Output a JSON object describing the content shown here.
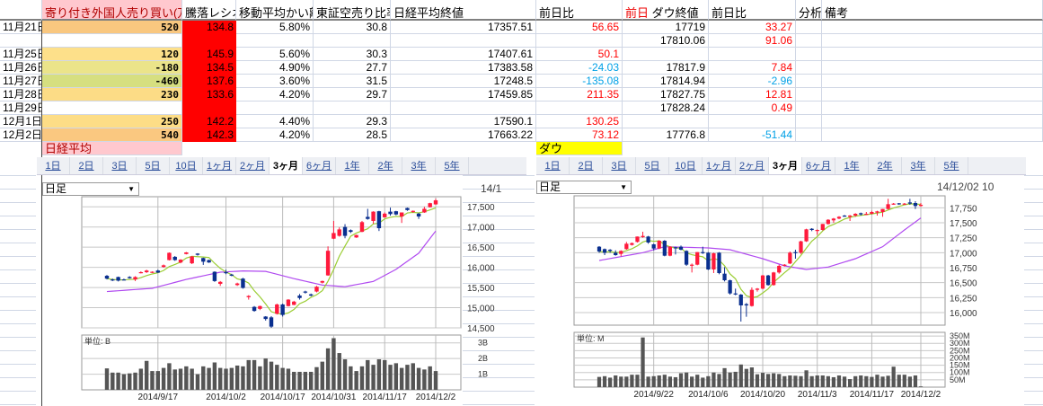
{
  "headers": {
    "A": "寄り付き外国人売り買い(万株)",
    "B": "騰落レシオ",
    "C": "移動平均かい離",
    "D": "東証空売り比率",
    "E": "日経平均終値",
    "F": "前日比",
    "G_prefix": "前日",
    "G": "ダウ終値",
    "H": "前日比",
    "I": "分析",
    "J": "備考"
  },
  "rows": [
    {
      "date": "11月21日",
      "foreign": "520",
      "ratio": "134.8",
      "ma_dev": "5.80%",
      "short_ratio": "30.8",
      "nikkei": "17357.51",
      "nikkei_chg": "56.65",
      "dow": "17719",
      "dow_chg": "33.27"
    },
    {
      "date": "",
      "foreign": "",
      "ratio": "",
      "ma_dev": "",
      "short_ratio": "",
      "nikkei": "",
      "nikkei_chg": "",
      "dow": "17810.06",
      "dow_chg": "91.06"
    },
    {
      "date": "11月25日",
      "foreign": "120",
      "ratio": "145.9",
      "ma_dev": "5.60%",
      "short_ratio": "30.3",
      "nikkei": "17407.61",
      "nikkei_chg": "50.1",
      "dow": "",
      "dow_chg": ""
    },
    {
      "date": "11月26日",
      "foreign": "-180",
      "ratio": "134.5",
      "ma_dev": "4.90%",
      "short_ratio": "27.7",
      "nikkei": "17383.58",
      "nikkei_chg": "-24.03",
      "dow": "17817.9",
      "dow_chg": "7.84"
    },
    {
      "date": "11月27日",
      "foreign": "-460",
      "ratio": "137.6",
      "ma_dev": "3.60%",
      "short_ratio": "31.5",
      "nikkei": "17248.5",
      "nikkei_chg": "-135.08",
      "dow": "17814.94",
      "dow_chg": "-2.96"
    },
    {
      "date": "11月28日",
      "foreign": "230",
      "ratio": "133.6",
      "ma_dev": "4.20%",
      "short_ratio": "29.7",
      "nikkei": "17459.85",
      "nikkei_chg": "211.35",
      "dow": "17827.75",
      "dow_chg": "12.81"
    },
    {
      "date": "11月29日",
      "foreign": "",
      "ratio": "",
      "ma_dev": "",
      "short_ratio": "",
      "nikkei": "",
      "nikkei_chg": "",
      "dow": "17828.24",
      "dow_chg": "0.49"
    },
    {
      "date": "12月1日",
      "foreign": "250",
      "ratio": "142.2",
      "ma_dev": "4.40%",
      "short_ratio": "29.3",
      "nikkei": "17590.1",
      "nikkei_chg": "130.25",
      "dow": "",
      "dow_chg": ""
    },
    {
      "date": "12月2日",
      "foreign": "540",
      "ratio": "142.3",
      "ma_dev": "4.20%",
      "short_ratio": "28.5",
      "nikkei": "17663.22",
      "nikkei_chg": "73.12",
      "dow": "17776.8",
      "dow_chg": "-51.44"
    }
  ],
  "foreign_colors": [
    "#f9c77f",
    "#ffffff",
    "#fde08a",
    "#ebe48a",
    "#d6df80",
    "#fcdc86",
    "#ffffff",
    "#fddd86",
    "#fac880"
  ],
  "ratio_color": "#ff0000",
  "up_color": "#ff0000",
  "down_color": "#00a0e6",
  "labels": {
    "nikkei": "日経平均",
    "dow": "ダウ"
  },
  "tabs": [
    "1日",
    "2日",
    "3日",
    "5日",
    "10日",
    "1ヶ月",
    "2ヶ月",
    "3ヶ月",
    "6ヶ月",
    "1年",
    "2年",
    "3年",
    "5年"
  ],
  "active_tab": "3ヶ月",
  "charts": [
    {
      "name": "nikkei",
      "period_select": "日足",
      "timestamp": "14/1",
      "type": "candlestick",
      "y_ticks": [
        "17,500",
        "17,000",
        "16,500",
        "16,000",
        "15,500",
        "15,000",
        "14,500"
      ],
      "y_tick_values": [
        17500,
        17000,
        16500,
        16000,
        15500,
        15000,
        14500
      ],
      "ylim": [
        14500,
        17750
      ],
      "x_ticks": [
        "2014/9/17",
        "2014/10/2",
        "2014/10/17",
        "2014/10/31",
        "2014/11/17",
        "2014/12/2"
      ],
      "x_tick_index": [
        9,
        21,
        31,
        40,
        49,
        58
      ],
      "volume_unit": "単位: B",
      "volume_ticks": [
        "3B",
        "2B",
        "1B"
      ],
      "volume_tick_values": [
        3,
        2,
        1
      ],
      "volume_max": 3.5,
      "ohlc": [
        [
          15790,
          15810,
          15700,
          15720
        ],
        [
          15700,
          15720,
          15660,
          15680
        ],
        [
          15760,
          15770,
          15650,
          15670
        ],
        [
          15700,
          15720,
          15680,
          15690
        ],
        [
          15760,
          15780,
          15720,
          15730
        ],
        [
          15700,
          15780,
          15660,
          15760
        ],
        [
          15870,
          15900,
          15850,
          15880
        ],
        [
          15880,
          15940,
          15860,
          15920
        ],
        [
          15880,
          15900,
          15860,
          15890
        ],
        [
          15920,
          15940,
          15860,
          15870
        ],
        [
          16010,
          16070,
          15990,
          16050
        ],
        [
          16180,
          16370,
          16170,
          16360
        ],
        [
          16260,
          16280,
          16160,
          16180
        ],
        [
          16120,
          16200,
          16100,
          16190
        ],
        [
          16330,
          16380,
          16320,
          16370
        ],
        [
          16100,
          16280,
          16080,
          16270
        ],
        [
          16340,
          16350,
          16290,
          16310
        ],
        [
          16230,
          16240,
          16060,
          16140
        ],
        [
          16180,
          16190,
          16110,
          16120
        ],
        [
          15890,
          15900,
          15640,
          15660
        ],
        [
          15590,
          15660,
          15540,
          15640
        ],
        [
          15880,
          15940,
          15830,
          15870
        ],
        [
          15820,
          15840,
          15780,
          15800
        ],
        [
          15560,
          15620,
          15540,
          15600
        ],
        [
          15720,
          15740,
          15470,
          15490
        ],
        [
          15260,
          15310,
          15200,
          15290
        ],
        [
          15020,
          15040,
          14900,
          14920
        ],
        [
          14970,
          15050,
          14940,
          15040
        ],
        [
          14780,
          14790,
          14680,
          14720
        ],
        [
          14760,
          14790,
          14500,
          14530
        ],
        [
          14850,
          15100,
          14830,
          15080
        ],
        [
          15080,
          15100,
          14780,
          14820
        ],
        [
          15040,
          15210,
          15030,
          15200
        ],
        [
          15070,
          15170,
          15060,
          15150
        ],
        [
          15300,
          15340,
          15200,
          15240
        ],
        [
          15400,
          15420,
          15350,
          15390
        ],
        [
          15330,
          15350,
          15280,
          15300
        ],
        [
          15400,
          15540,
          15380,
          15520
        ],
        [
          15620,
          15670,
          15600,
          15660
        ],
        [
          15800,
          16520,
          15790,
          16410
        ],
        [
          16710,
          17150,
          16700,
          16850
        ],
        [
          16780,
          16990,
          16760,
          16940
        ],
        [
          17000,
          17070,
          16720,
          16780
        ],
        [
          16920,
          16940,
          16850,
          16880
        ],
        [
          16740,
          16810,
          16730,
          16800
        ],
        [
          16880,
          17150,
          16870,
          17120
        ],
        [
          17250,
          17450,
          17180,
          17200
        ],
        [
          17150,
          17390,
          17080,
          17380
        ],
        [
          17390,
          17400,
          16900,
          16970
        ],
        [
          17240,
          17360,
          17230,
          17330
        ],
        [
          17380,
          17480,
          17280,
          17320
        ],
        [
          17390,
          17400,
          17290,
          17310
        ],
        [
          17260,
          17360,
          17100,
          17360
        ],
        [
          17470,
          17480,
          17400,
          17420
        ],
        [
          17380,
          17410,
          17350,
          17400
        ],
        [
          17330,
          17350,
          17200,
          17260
        ],
        [
          17360,
          17500,
          17350,
          17450
        ],
        [
          17490,
          17600,
          17480,
          17590
        ],
        [
          17560,
          17700,
          17550,
          17660
        ]
      ],
      "ma_long": [
        [
          0,
          15400
        ],
        [
          8,
          15480
        ],
        [
          14,
          15700
        ],
        [
          20,
          15880
        ],
        [
          24,
          15910
        ],
        [
          28,
          15900
        ],
        [
          33,
          15720
        ],
        [
          38,
          15560
        ],
        [
          42,
          15520
        ],
        [
          47,
          15650
        ],
        [
          51,
          15950
        ],
        [
          55,
          16350
        ],
        [
          58,
          16900
        ]
      ],
      "volume": [
        1.37,
        1.1,
        1.1,
        1.0,
        1.05,
        1.1,
        1.35,
        1.85,
        1.2,
        1.2,
        1.4,
        1.7,
        1.3,
        1.35,
        1.5,
        1.35,
        1.0,
        1.5,
        1.4,
        1.75,
        1.4,
        1.35,
        1.4,
        1.55,
        1.5,
        1.9,
        1.9,
        1.5,
        2.0,
        1.8,
        1.6,
        1.4,
        1.35,
        1.15,
        1.15,
        1.15,
        1.15,
        1.45,
        1.8,
        2.65,
        3.3,
        2.35,
        1.95,
        1.5,
        1.2,
        1.5,
        1.9,
        1.6,
        1.95,
        1.9,
        1.6,
        1.7,
        1.4,
        1.6,
        1.7,
        1.4,
        1.3,
        1.5,
        1.2
      ]
    },
    {
      "name": "dow",
      "period_select": "日足",
      "timestamp": "14/12/02 10",
      "type": "candlestick",
      "y_ticks": [
        "17,750",
        "17,500",
        "17,250",
        "17,000",
        "16,750",
        "16,500",
        "16,250",
        "16,000"
      ],
      "y_tick_values": [
        17750,
        17500,
        17250,
        17000,
        16750,
        16500,
        16250,
        16000
      ],
      "ylim": [
        15790,
        17950
      ],
      "x_ticks": [
        "2014/9/22",
        "2014/10/6",
        "2014/10/20",
        "2014/11/3",
        "2014/11/17",
        "2014/12/2"
      ],
      "x_tick_index": [
        10,
        20,
        30,
        40,
        50,
        59
      ],
      "volume_unit": "単位: M",
      "volume_ticks": [
        "350M",
        "300M",
        "250M",
        "200M",
        "150M",
        "100M",
        "50M"
      ],
      "volume_tick_values": [
        350,
        300,
        250,
        200,
        150,
        100,
        50
      ],
      "volume_max": 375,
      "ohlc": [
        [
          17100,
          17110,
          17000,
          17020
        ],
        [
          17060,
          17070,
          16960,
          17000
        ],
        [
          17050,
          17060,
          17000,
          17030
        ],
        [
          17000,
          17040,
          16950,
          16960
        ],
        [
          16980,
          17040,
          16940,
          17030
        ],
        [
          17060,
          17180,
          17050,
          17150
        ],
        [
          17130,
          17170,
          17120,
          17160
        ],
        [
          17180,
          17270,
          17170,
          17270
        ],
        [
          17260,
          17350,
          17250,
          17280
        ],
        [
          17270,
          17280,
          17150,
          17170
        ],
        [
          17140,
          17150,
          17040,
          17070
        ],
        [
          17070,
          17210,
          17060,
          17200
        ],
        [
          17200,
          17210,
          16940,
          16950
        ],
        [
          16950,
          17110,
          16940,
          17100
        ],
        [
          17090,
          17100,
          16970,
          17080
        ],
        [
          17100,
          17120,
          17040,
          17050
        ],
        [
          17030,
          17040,
          16780,
          16800
        ],
        [
          16800,
          16820,
          16670,
          16800
        ],
        [
          16800,
          17010,
          16790,
          17010
        ],
        [
          17010,
          17100,
          16980,
          17000
        ],
        [
          17000,
          17010,
          16710,
          16720
        ],
        [
          16720,
          17000,
          16660,
          16990
        ],
        [
          17000,
          17010,
          16640,
          16660
        ],
        [
          16650,
          16760,
          16520,
          16540
        ],
        [
          16540,
          16550,
          16300,
          16320
        ],
        [
          16320,
          16400,
          16290,
          16310
        ],
        [
          16300,
          16310,
          15850,
          16120
        ],
        [
          16140,
          16160,
          15930,
          16120
        ],
        [
          16110,
          16420,
          16100,
          16380
        ],
        [
          16380,
          16410,
          16350,
          16400
        ],
        [
          16400,
          16630,
          16390,
          16620
        ],
        [
          16620,
          16630,
          16450,
          16460
        ],
        [
          16460,
          16680,
          16450,
          16670
        ],
        [
          16670,
          16800,
          16650,
          16780
        ],
        [
          16790,
          16810,
          16770,
          16800
        ],
        [
          16820,
          17020,
          16810,
          17000
        ],
        [
          17010,
          17050,
          16900,
          17000
        ],
        [
          17000,
          17200,
          16980,
          17190
        ],
        [
          17190,
          17400,
          17180,
          17390
        ],
        [
          17400,
          17410,
          17360,
          17380
        ],
        [
          17370,
          17390,
          17300,
          17380
        ],
        [
          17380,
          17480,
          17370,
          17480
        ],
        [
          17480,
          17560,
          17470,
          17550
        ],
        [
          17540,
          17580,
          17500,
          17570
        ],
        [
          17570,
          17610,
          17560,
          17600
        ],
        [
          17620,
          17630,
          17600,
          17610
        ],
        [
          17600,
          17630,
          17530,
          17620
        ],
        [
          17620,
          17660,
          17600,
          17650
        ],
        [
          17660,
          17670,
          17620,
          17640
        ],
        [
          17640,
          17680,
          17630,
          17650
        ],
        [
          17650,
          17700,
          17640,
          17680
        ],
        [
          17670,
          17700,
          17620,
          17690
        ],
        [
          17680,
          17730,
          17600,
          17730
        ],
        [
          17730,
          17900,
          17720,
          17810
        ],
        [
          17810,
          17830,
          17800,
          17820
        ],
        [
          17825,
          17830,
          17800,
          17815
        ],
        [
          17810,
          17830,
          17800,
          17820
        ],
        [
          17840,
          17900,
          17800,
          17820
        ],
        [
          17830,
          17860,
          17730,
          17780
        ],
        [
          17780,
          17830,
          17770,
          17800
        ]
      ],
      "ma_long": [
        [
          0,
          16870
        ],
        [
          8,
          17000
        ],
        [
          12,
          17100
        ],
        [
          20,
          17080
        ],
        [
          24,
          17050
        ],
        [
          30,
          16900
        ],
        [
          34,
          16780
        ],
        [
          38,
          16720
        ],
        [
          42,
          16760
        ],
        [
          47,
          16900
        ],
        [
          52,
          17100
        ],
        [
          56,
          17380
        ],
        [
          59,
          17580
        ]
      ],
      "volume": [
        70,
        75,
        65,
        80,
        72,
        72,
        85,
        85,
        340,
        72,
        75,
        80,
        85,
        72,
        68,
        95,
        100,
        72,
        85,
        65,
        75,
        100,
        90,
        130,
        100,
        105,
        155,
        125,
        135,
        88,
        98,
        90,
        95,
        90,
        75,
        80,
        78,
        75,
        115,
        75,
        80,
        80,
        75,
        68,
        80,
        72,
        55,
        75,
        80,
        75,
        70,
        85,
        72,
        78,
        140,
        85,
        85,
        72,
        80,
        5
      ]
    }
  ],
  "chart_colors": {
    "up": "#ff1a3c",
    "down": "#0a2f8f",
    "ma_short": "#9acd32",
    "ma_long": "#b04af0",
    "volume": "#555555"
  }
}
